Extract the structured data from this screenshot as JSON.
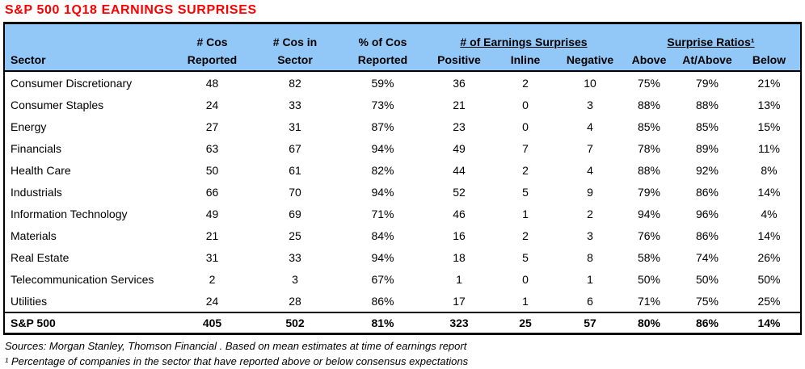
{
  "title": "S&P 500 1Q18 EARNINGS SURPRISES",
  "colors": {
    "title_red": "#FF0000",
    "header_blue": "#92C8F8",
    "border_black": "#000000"
  },
  "table": {
    "group_headers": {
      "earnings_surprises": "# of Earnings Surprises",
      "surprise_ratios": "Surprise Ratios¹"
    },
    "col_headers": {
      "sector": "Sector",
      "cos_reported_l1": "# Cos",
      "cos_reported_l2": "Reported",
      "cos_in_sector_l1": "# Cos in",
      "cos_in_sector_l2": "Sector",
      "pct_reported_l1": "% of Cos",
      "pct_reported_l2": "Reported",
      "positive": "Positive",
      "inline": "Inline",
      "negative": "Negative",
      "above": "Above",
      "at_above": "At/Above",
      "below": "Below"
    },
    "rows": [
      {
        "sector": "Consumer Discretionary",
        "cos_reported": "48",
        "cos_in_sector": "82",
        "pct_reported": "59%",
        "positive": "36",
        "inline": "2",
        "negative": "10",
        "above": "75%",
        "at_above": "79%",
        "below": "21%"
      },
      {
        "sector": "Consumer Staples",
        "cos_reported": "24",
        "cos_in_sector": "33",
        "pct_reported": "73%",
        "positive": "21",
        "inline": "0",
        "negative": "3",
        "above": "88%",
        "at_above": "88%",
        "below": "13%"
      },
      {
        "sector": "Energy",
        "cos_reported": "27",
        "cos_in_sector": "31",
        "pct_reported": "87%",
        "positive": "23",
        "inline": "0",
        "negative": "4",
        "above": "85%",
        "at_above": "85%",
        "below": "15%"
      },
      {
        "sector": "Financials",
        "cos_reported": "63",
        "cos_in_sector": "67",
        "pct_reported": "94%",
        "positive": "49",
        "inline": "7",
        "negative": "7",
        "above": "78%",
        "at_above": "89%",
        "below": "11%"
      },
      {
        "sector": "Health Care",
        "cos_reported": "50",
        "cos_in_sector": "61",
        "pct_reported": "82%",
        "positive": "44",
        "inline": "2",
        "negative": "4",
        "above": "88%",
        "at_above": "92%",
        "below": "8%"
      },
      {
        "sector": "Industrials",
        "cos_reported": "66",
        "cos_in_sector": "70",
        "pct_reported": "94%",
        "positive": "52",
        "inline": "5",
        "negative": "9",
        "above": "79%",
        "at_above": "86%",
        "below": "14%"
      },
      {
        "sector": "Information Technology",
        "cos_reported": "49",
        "cos_in_sector": "69",
        "pct_reported": "71%",
        "positive": "46",
        "inline": "1",
        "negative": "2",
        "above": "94%",
        "at_above": "96%",
        "below": "4%"
      },
      {
        "sector": "Materials",
        "cos_reported": "21",
        "cos_in_sector": "25",
        "pct_reported": "84%",
        "positive": "16",
        "inline": "2",
        "negative": "3",
        "above": "76%",
        "at_above": "86%",
        "below": "14%"
      },
      {
        "sector": "Real Estate",
        "cos_reported": "31",
        "cos_in_sector": "33",
        "pct_reported": "94%",
        "positive": "18",
        "inline": "5",
        "negative": "8",
        "above": "58%",
        "at_above": "74%",
        "below": "26%"
      },
      {
        "sector": "Telecommunication Services",
        "cos_reported": "2",
        "cos_in_sector": "3",
        "pct_reported": "67%",
        "positive": "1",
        "inline": "0",
        "negative": "1",
        "above": "50%",
        "at_above": "50%",
        "below": "50%"
      },
      {
        "sector": "Utilities",
        "cos_reported": "24",
        "cos_in_sector": "28",
        "pct_reported": "86%",
        "positive": "17",
        "inline": "1",
        "negative": "6",
        "above": "71%",
        "at_above": "75%",
        "below": "25%"
      }
    ],
    "total": {
      "sector": "S&P 500",
      "cos_reported": "405",
      "cos_in_sector": "502",
      "pct_reported": "81%",
      "positive": "323",
      "inline": "25",
      "negative": "57",
      "above": "80%",
      "at_above": "86%",
      "below": "14%"
    }
  },
  "footnotes": [
    "Sources: Morgan Stanley, Thomson Financial . Based on mean estimates at time of earnings report",
    "¹ Percentage of companies in the sector that have reported above or below consensus expectations"
  ]
}
